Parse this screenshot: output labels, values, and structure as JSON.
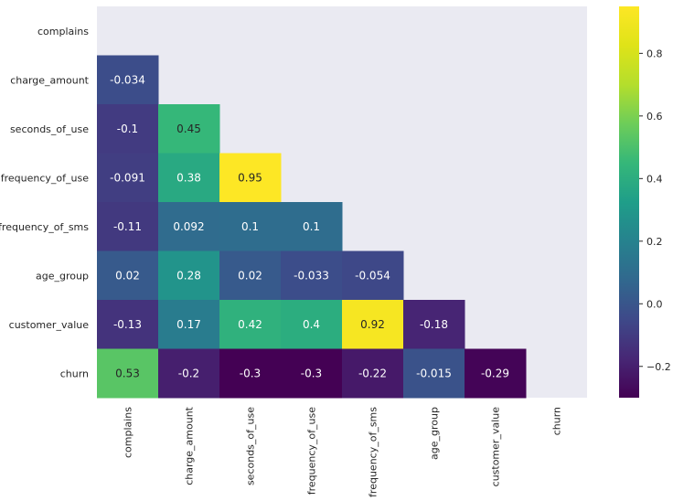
{
  "chart_data": {
    "type": "heatmap",
    "title": "",
    "mask": "upper-triangle-including-diagonal",
    "rows": [
      "complains",
      "charge_amount",
      "seconds_of_use",
      "frequency_of_use",
      "frequency_of_sms",
      "age_group",
      "customer_value",
      "churn"
    ],
    "columns": [
      "complains",
      "charge_amount",
      "seconds_of_use",
      "frequency_of_use",
      "frequency_of_sms",
      "age_group",
      "customer_value",
      "churn"
    ],
    "values": [
      [
        null,
        null,
        null,
        null,
        null,
        null,
        null,
        null
      ],
      [
        -0.034,
        null,
        null,
        null,
        null,
        null,
        null,
        null
      ],
      [
        -0.1,
        0.45,
        null,
        null,
        null,
        null,
        null,
        null
      ],
      [
        -0.091,
        0.38,
        0.95,
        null,
        null,
        null,
        null,
        null
      ],
      [
        -0.11,
        0.092,
        0.1,
        0.1,
        null,
        null,
        null,
        null
      ],
      [
        0.02,
        0.28,
        0.02,
        -0.033,
        -0.054,
        null,
        null,
        null
      ],
      [
        -0.13,
        0.17,
        0.42,
        0.4,
        0.92,
        -0.18,
        null,
        null
      ],
      [
        0.53,
        -0.2,
        -0.3,
        -0.3,
        -0.22,
        -0.015,
        -0.29,
        null
      ]
    ],
    "labels": [
      [
        null,
        null,
        null,
        null,
        null,
        null,
        null,
        null
      ],
      [
        "-0.034",
        null,
        null,
        null,
        null,
        null,
        null,
        null
      ],
      [
        "-0.1",
        "0.45",
        null,
        null,
        null,
        null,
        null,
        null
      ],
      [
        "-0.091",
        "0.38",
        "0.95",
        null,
        null,
        null,
        null,
        null
      ],
      [
        "-0.11",
        "0.092",
        "0.1",
        "0.1",
        null,
        null,
        null,
        null
      ],
      [
        "0.02",
        "0.28",
        "0.02",
        "-0.033",
        "-0.054",
        null,
        null,
        null
      ],
      [
        "-0.13",
        "0.17",
        "0.42",
        "0.4",
        "0.92",
        "-0.18",
        null,
        null
      ],
      [
        "0.53",
        "-0.2",
        "-0.3",
        "-0.3",
        "-0.22",
        "-0.015",
        "-0.29",
        null
      ]
    ],
    "colormap": "viridis",
    "colorbar": {
      "vmin": -0.3,
      "vmax": 0.95,
      "ticks": [
        -0.2,
        0,
        0.2,
        0.4,
        0.6,
        0.8
      ],
      "tick_labels": [
        "−0.2",
        "0.0",
        "0.2",
        "0.4",
        "0.6",
        "0.8"
      ]
    },
    "background_color": "#eaeaf2",
    "text_color": "#262626"
  }
}
